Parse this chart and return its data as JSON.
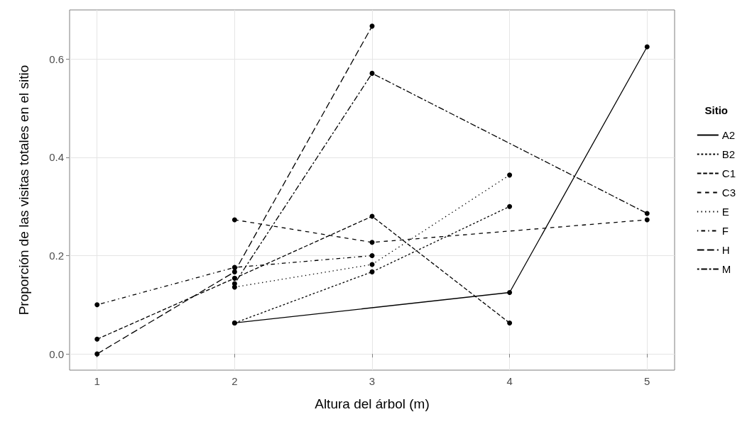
{
  "chart_data": {
    "type": "line",
    "xlabel": "Altura del árbol (m)",
    "ylabel": "Proporción de las visitas totales en el sitio",
    "legend_title": "Sitio",
    "legend": "right",
    "grid": true,
    "marker": "circle",
    "xlim": [
      0.8,
      5.2
    ],
    "xticks": [
      1,
      2,
      3,
      4,
      5
    ],
    "ylim": [
      -0.033,
      0.7
    ],
    "yticks": [
      {
        "value": 0,
        "label": "0.0"
      },
      {
        "value": 0.2,
        "label": "0.2"
      },
      {
        "value": 0.4,
        "label": "0.4"
      },
      {
        "value": 0.6,
        "label": "0.6"
      }
    ],
    "series": [
      {
        "name": "A2",
        "color": "#000000",
        "line_style": "solid",
        "x": [
          2,
          4,
          5
        ],
        "values": [
          0.063,
          0.125,
          0.625
        ]
      },
      {
        "name": "B2",
        "color": "#000000",
        "line_style": "dotted",
        "x": [
          2,
          3,
          4
        ],
        "values": [
          0.063,
          0.167,
          0.3
        ]
      },
      {
        "name": "C1",
        "color": "#000000",
        "line_style": "dashed",
        "x": [
          1,
          2,
          3,
          4
        ],
        "values": [
          0.03,
          0.154,
          0.28,
          0.063
        ]
      },
      {
        "name": "C3",
        "color": "#000000",
        "line_style": "dashed",
        "x": [
          2,
          3,
          5
        ],
        "values": [
          0.273,
          0.227,
          0.273
        ]
      },
      {
        "name": "E",
        "color": "#000000",
        "line_style": "dotted",
        "x": [
          2,
          3,
          4
        ],
        "values": [
          0.136,
          0.182,
          0.364
        ]
      },
      {
        "name": "F",
        "color": "#000000",
        "line_style": "dashed",
        "x": [
          1,
          2,
          3
        ],
        "values": [
          0.1,
          0.176,
          0.2
        ]
      },
      {
        "name": "H",
        "color": "#000000",
        "line_style": "dashed",
        "x": [
          1,
          2,
          3
        ],
        "values": [
          0,
          0.167,
          0.667
        ]
      },
      {
        "name": "M",
        "color": "#000000",
        "line_style": "dashed",
        "x": [
          2,
          3,
          5
        ],
        "values": [
          0.143,
          0.571,
          0.286
        ]
      }
    ]
  }
}
